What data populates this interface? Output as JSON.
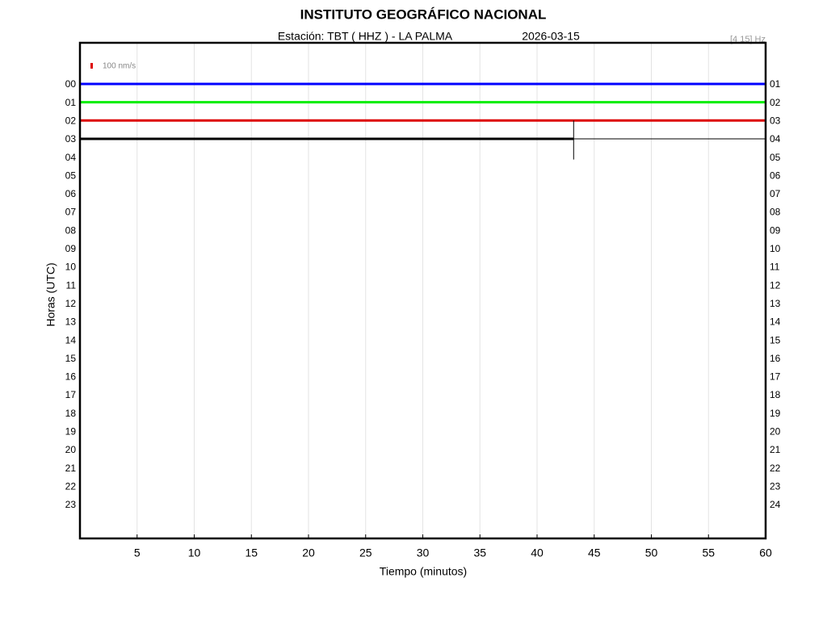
{
  "chart_data": {
    "type": "helicorder",
    "title": "INSTITUTO GEOGRÁFICO NACIONAL",
    "subtitle": "Estación:  TBT ( HHZ ) - LA PALMA",
    "date": "2026-03-15",
    "filter": "[4 15] Hz",
    "scale_label": "100 nm/s",
    "xlabel": "Tiempo (minutos)",
    "ylabel": "Horas (UTC)",
    "xlim": [
      0,
      60
    ],
    "xticks": [
      5,
      10,
      15,
      20,
      25,
      30,
      35,
      40,
      45,
      50,
      55,
      60
    ],
    "grid": true,
    "categories": [
      "00",
      "01",
      "02",
      "03",
      "04",
      "05",
      "06",
      "07",
      "08",
      "09",
      "10",
      "11",
      "12",
      "13",
      "14",
      "15",
      "16",
      "17",
      "18",
      "19",
      "20",
      "21",
      "22",
      "23"
    ],
    "right_labels": [
      "01",
      "02",
      "03",
      "04",
      "05",
      "06",
      "07",
      "08",
      "09",
      "10",
      "11",
      "12",
      "13",
      "14",
      "15",
      "16",
      "17",
      "18",
      "19",
      "20",
      "21",
      "22",
      "23",
      "24"
    ],
    "traces": [
      {
        "color": "#0000ff",
        "x": [
          0,
          60
        ]
      },
      {
        "color": "#00ee00",
        "x": [
          0,
          60
        ]
      },
      {
        "color": "#dd0000",
        "x": [
          0,
          60
        ]
      },
      {
        "color": "#000000",
        "x": [
          0,
          43.2
        ]
      }
    ]
  }
}
